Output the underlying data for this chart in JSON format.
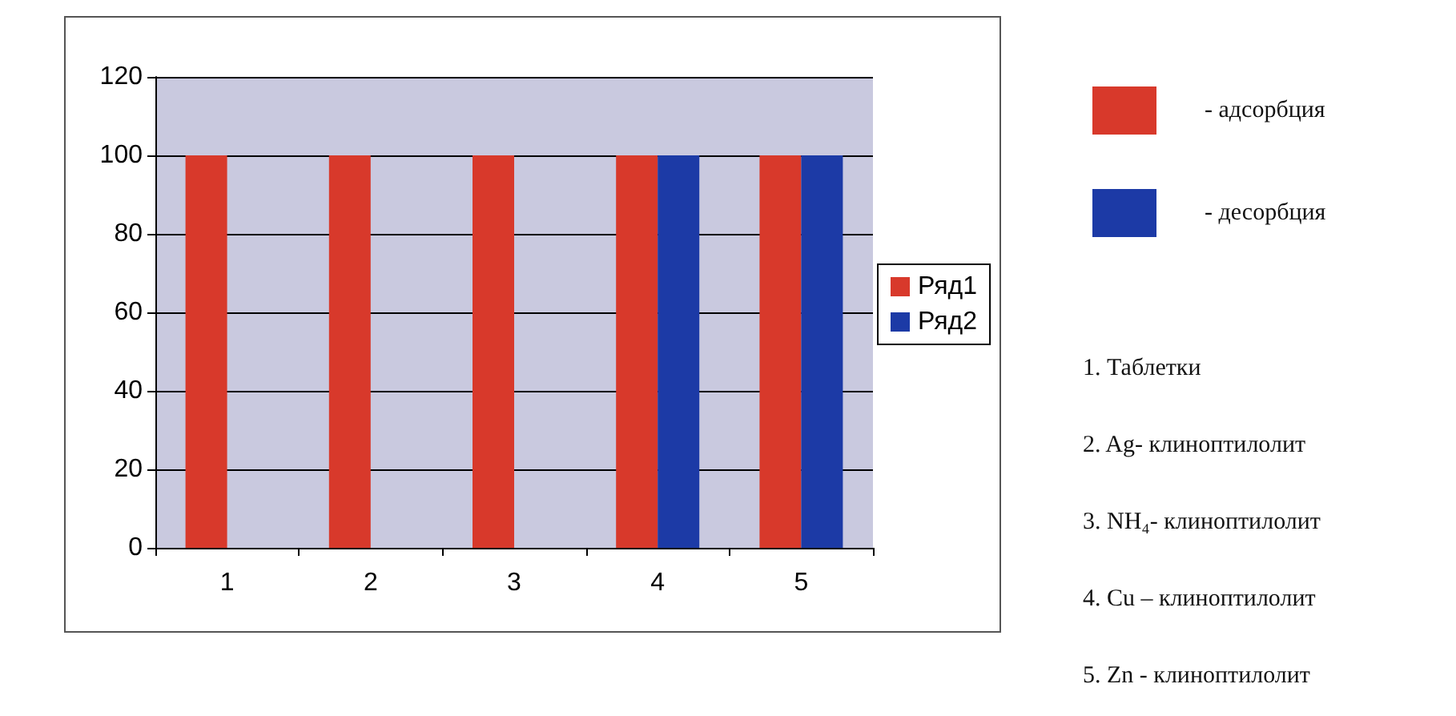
{
  "chart_data": {
    "type": "bar",
    "categories": [
      "1",
      "2",
      "3",
      "4",
      "5"
    ],
    "series": [
      {
        "name": "Ряд1",
        "color": "#d8392b",
        "values": [
          100,
          100,
          100,
          100,
          100
        ]
      },
      {
        "name": "Ряд2",
        "color": "#1c3aa6",
        "values": [
          null,
          null,
          null,
          100,
          100
        ]
      }
    ],
    "ylim": [
      0,
      120
    ],
    "yticks": [
      0,
      20,
      40,
      60,
      80,
      100,
      120
    ],
    "grid": "y",
    "legend": "right",
    "annotations": [
      "- адсорбция",
      "- десорбция",
      "1. Таблетки",
      "2. Ag- клиноптилолит",
      "3. NH₄- клиноптилолит",
      "4. Cu – клиноптилолит",
      "5. Zn - клиноптилолит"
    ]
  }
}
